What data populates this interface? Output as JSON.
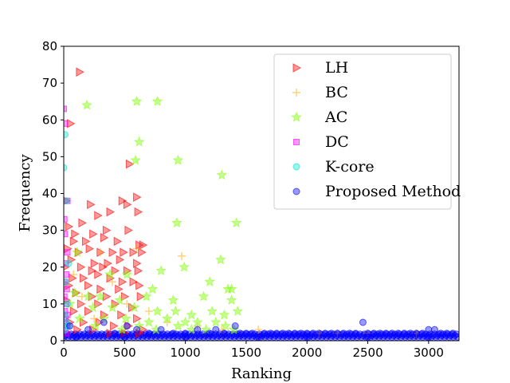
{
  "chart_data": {
    "type": "scatter",
    "xlabel": "Ranking",
    "ylabel": "Frequency",
    "xlim": [
      0,
      3250
    ],
    "ylim": [
      0,
      80
    ],
    "xticks": [
      "0",
      "500",
      "1000",
      "1500",
      "2000",
      "2500",
      "3000"
    ],
    "yticks": [
      "0",
      "10",
      "20",
      "30",
      "40",
      "50",
      "60",
      "70",
      "80"
    ],
    "grid": false,
    "legend_position": "top-right",
    "series": [
      {
        "name": "LH",
        "marker": "triangle-right",
        "color": "#ff0000",
        "points": [
          [
            130,
            73
          ],
          [
            55,
            59
          ],
          [
            540,
            48
          ],
          [
            20,
            38
          ],
          [
            600,
            39
          ],
          [
            220,
            37
          ],
          [
            520,
            37
          ],
          [
            480,
            38
          ],
          [
            380,
            35
          ],
          [
            280,
            34
          ],
          [
            150,
            32
          ],
          [
            610,
            35
          ],
          [
            40,
            31
          ],
          [
            90,
            29
          ],
          [
            240,
            29
          ],
          [
            350,
            30
          ],
          [
            530,
            30
          ],
          [
            80,
            27
          ],
          [
            180,
            27
          ],
          [
            330,
            28
          ],
          [
            440,
            27
          ],
          [
            620,
            26
          ],
          [
            650,
            26
          ],
          [
            30,
            25
          ],
          [
            120,
            24
          ],
          [
            210,
            25
          ],
          [
            300,
            24
          ],
          [
            400,
            24
          ],
          [
            490,
            24
          ],
          [
            570,
            24
          ],
          [
            640,
            24
          ],
          [
            60,
            22
          ],
          [
            250,
            21
          ],
          [
            360,
            21
          ],
          [
            460,
            22
          ],
          [
            600,
            21
          ],
          [
            10,
            20
          ],
          [
            140,
            20
          ],
          [
            230,
            19
          ],
          [
            320,
            20
          ],
          [
            420,
            19
          ],
          [
            520,
            19
          ],
          [
            610,
            19
          ],
          [
            70,
            17
          ],
          [
            160,
            17
          ],
          [
            280,
            18
          ],
          [
            380,
            17
          ],
          [
            480,
            16
          ],
          [
            570,
            16
          ],
          [
            40,
            15
          ],
          [
            200,
            15
          ],
          [
            300,
            14
          ],
          [
            450,
            14
          ],
          [
            620,
            15
          ],
          [
            100,
            13
          ],
          [
            230,
            12
          ],
          [
            350,
            12
          ],
          [
            500,
            12
          ],
          [
            630,
            12
          ],
          [
            20,
            11
          ],
          [
            140,
            10
          ],
          [
            280,
            10
          ],
          [
            420,
            10
          ],
          [
            560,
            9
          ],
          [
            80,
            8
          ],
          [
            200,
            8
          ],
          [
            330,
            7
          ],
          [
            470,
            7
          ],
          [
            600,
            6
          ],
          [
            50,
            5
          ],
          [
            160,
            5
          ],
          [
            290,
            5
          ],
          [
            410,
            4
          ],
          [
            530,
            4
          ],
          [
            650,
            3
          ],
          [
            110,
            3
          ],
          [
            240,
            3
          ],
          [
            380,
            2
          ],
          [
            500,
            2
          ],
          [
            620,
            2
          ]
        ]
      },
      {
        "name": "BC",
        "marker": "plus",
        "color": "#ffa500",
        "points": [
          [
            970,
            23
          ],
          [
            600,
            25
          ],
          [
            300,
            24
          ],
          [
            80,
            18
          ],
          [
            400,
            16
          ],
          [
            150,
            12
          ],
          [
            520,
            10
          ],
          [
            700,
            8
          ],
          [
            250,
            6
          ],
          [
            850,
            5
          ],
          [
            1100,
            4
          ],
          [
            1300,
            3
          ],
          [
            1600,
            3
          ],
          [
            2100,
            2
          ],
          [
            2250,
            2
          ],
          [
            2500,
            2
          ],
          [
            2900,
            2
          ]
        ]
      },
      {
        "name": "AC",
        "marker": "star",
        "color": "#7fff00",
        "points": [
          [
            600,
            65
          ],
          [
            770,
            65
          ],
          [
            190,
            64
          ],
          [
            620,
            54
          ],
          [
            590,
            49
          ],
          [
            940,
            49
          ],
          [
            1300,
            45
          ],
          [
            930,
            32
          ],
          [
            1420,
            32
          ],
          [
            110,
            24
          ],
          [
            1290,
            22
          ],
          [
            800,
            19
          ],
          [
            990,
            20
          ],
          [
            380,
            18
          ],
          [
            520,
            18
          ],
          [
            1200,
            16
          ],
          [
            730,
            14
          ],
          [
            1350,
            14
          ],
          [
            1380,
            14
          ],
          [
            90,
            13
          ],
          [
            200,
            12
          ],
          [
            300,
            12
          ],
          [
            460,
            11
          ],
          [
            680,
            12
          ],
          [
            900,
            11
          ],
          [
            1150,
            12
          ],
          [
            1380,
            11
          ],
          [
            50,
            10
          ],
          [
            240,
            9
          ],
          [
            400,
            9
          ],
          [
            580,
            9
          ],
          [
            770,
            8
          ],
          [
            920,
            8
          ],
          [
            1050,
            7
          ],
          [
            1220,
            8
          ],
          [
            1320,
            7
          ],
          [
            1430,
            8
          ],
          [
            130,
            6
          ],
          [
            330,
            6
          ],
          [
            510,
            6
          ],
          [
            700,
            5
          ],
          [
            850,
            6
          ],
          [
            1000,
            5
          ],
          [
            1100,
            5
          ],
          [
            1250,
            5
          ],
          [
            1330,
            4
          ],
          [
            260,
            4
          ],
          [
            620,
            4
          ],
          [
            940,
            4
          ],
          [
            1170,
            3
          ],
          [
            1400,
            3
          ],
          [
            480,
            3
          ],
          [
            760,
            3
          ],
          [
            1050,
            3
          ]
        ]
      },
      {
        "name": "DC",
        "marker": "square",
        "color": "#ff00ff",
        "points": [
          [
            0,
            63
          ],
          [
            10,
            59
          ],
          [
            30,
            38
          ],
          [
            5,
            33
          ],
          [
            10,
            29
          ],
          [
            30,
            24
          ],
          [
            15,
            21
          ],
          [
            20,
            18
          ],
          [
            10,
            16
          ],
          [
            25,
            14
          ],
          [
            5,
            12
          ],
          [
            20,
            10
          ],
          [
            10,
            8
          ],
          [
            30,
            7
          ],
          [
            15,
            6
          ],
          [
            5,
            5
          ],
          [
            25,
            4
          ],
          [
            10,
            3
          ],
          [
            20,
            2
          ]
        ]
      },
      {
        "name": "K-core",
        "marker": "circle",
        "color": "#00e5cc",
        "points": [
          [
            10,
            56
          ],
          [
            0,
            47
          ],
          [
            20,
            38
          ],
          [
            40,
            21
          ],
          [
            15,
            16
          ],
          [
            30,
            10
          ],
          [
            5,
            7
          ],
          [
            20,
            5
          ],
          [
            35,
            4
          ],
          [
            10,
            3
          ]
        ]
      },
      {
        "name": "Proposed Method",
        "marker": "circle",
        "color": "#0000ff",
        "points": [
          [
            50,
            4
          ],
          [
            200,
            3
          ],
          [
            330,
            5
          ],
          [
            420,
            2
          ],
          [
            520,
            4
          ],
          [
            600,
            3
          ],
          [
            700,
            2
          ],
          [
            800,
            3
          ],
          [
            900,
            2
          ],
          [
            1000,
            2
          ],
          [
            1100,
            3
          ],
          [
            1200,
            2
          ],
          [
            1250,
            3
          ],
          [
            1320,
            2
          ],
          [
            1410,
            4
          ],
          [
            1450,
            2
          ],
          [
            1550,
            2
          ],
          [
            1650,
            2
          ],
          [
            1700,
            2
          ],
          [
            1750,
            2
          ],
          [
            1800,
            2
          ],
          [
            1850,
            2
          ],
          [
            1900,
            2
          ],
          [
            1950,
            2
          ],
          [
            2000,
            2
          ],
          [
            2050,
            2
          ],
          [
            2100,
            2
          ],
          [
            2150,
            2
          ],
          [
            2200,
            2
          ],
          [
            2250,
            2
          ],
          [
            2300,
            2
          ],
          [
            2350,
            2
          ],
          [
            2400,
            2
          ],
          [
            2460,
            5
          ],
          [
            2500,
            2
          ],
          [
            2550,
            2
          ],
          [
            2600,
            2
          ],
          [
            2650,
            2
          ],
          [
            2700,
            2
          ],
          [
            2750,
            2
          ],
          [
            2800,
            2
          ],
          [
            2850,
            2
          ],
          [
            2900,
            2
          ],
          [
            2950,
            2
          ],
          [
            3000,
            3
          ],
          [
            3050,
            3
          ],
          [
            3100,
            2
          ],
          [
            3150,
            2
          ],
          [
            3200,
            2
          ],
          [
            1500,
            2
          ],
          [
            1600,
            1
          ],
          [
            2000,
            1
          ],
          [
            2500,
            1
          ],
          [
            3000,
            1
          ],
          [
            1000,
            1
          ],
          [
            500,
            1
          ],
          [
            100,
            1
          ]
        ]
      }
    ]
  }
}
